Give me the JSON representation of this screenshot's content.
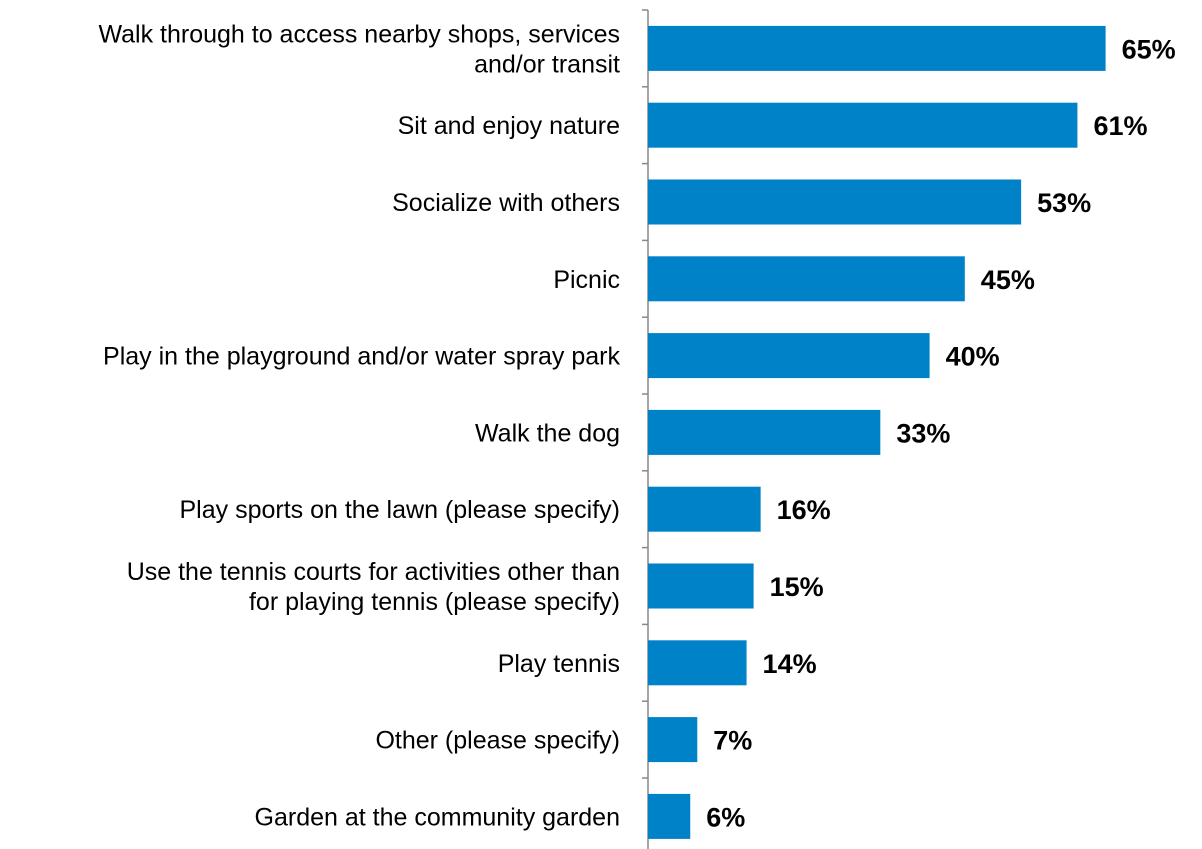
{
  "chart_data": {
    "type": "bar",
    "orientation": "horizontal",
    "title": "",
    "xlabel": "",
    "ylabel": "",
    "value_suffix": "%",
    "xlim": [
      0,
      70
    ],
    "grid": false,
    "legend": "none",
    "bar_color": "#0082c8",
    "axis_color": "#888888",
    "categories": [
      [
        "Walk through to access nearby shops, services",
        "and/or transit"
      ],
      [
        "Sit and enjoy nature"
      ],
      [
        "Socialize with others"
      ],
      [
        "Picnic"
      ],
      [
        "Play in the playground and/or water spray park"
      ],
      [
        "Walk the dog"
      ],
      [
        "Play sports on the lawn (please specify)"
      ],
      [
        "Use the tennis courts for activities other than",
        "for playing tennis (please specify)"
      ],
      [
        "Play tennis"
      ],
      [
        "Other (please specify)"
      ],
      [
        "Garden at the community garden"
      ]
    ],
    "values": [
      65,
      61,
      53,
      45,
      40,
      33,
      16,
      15,
      14,
      7,
      6
    ],
    "value_labels": [
      "65%",
      "61%",
      "53%",
      "45%",
      "40%",
      "33%",
      "16%",
      "15%",
      "14%",
      "7%",
      "6%"
    ]
  }
}
